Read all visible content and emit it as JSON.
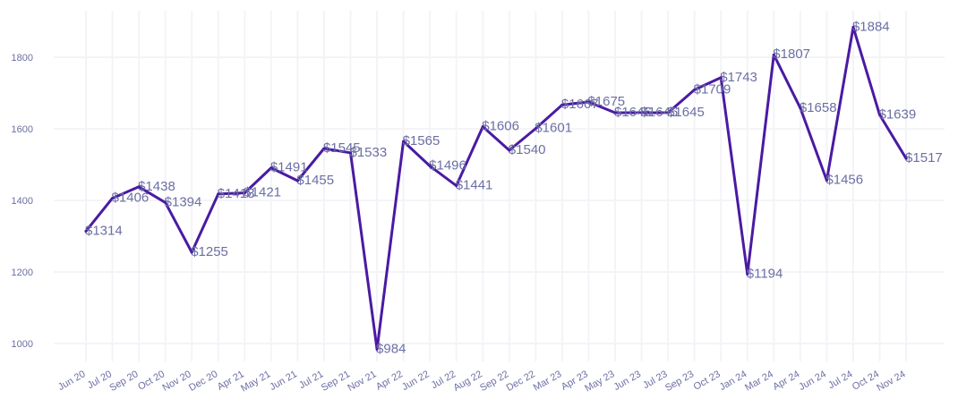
{
  "chart_data": {
    "type": "line",
    "title": "",
    "xlabel": "",
    "ylabel": "",
    "ylim": [
      950,
      1930
    ],
    "yticks": [
      1000,
      1200,
      1400,
      1600,
      1800
    ],
    "ytick_labels": [
      "1000",
      "1200",
      "1400",
      "1600",
      "1800"
    ],
    "grid": true,
    "legend": "none",
    "line_color": "#4a1aa3",
    "label_color": "#6b6fa3",
    "grid_color": "#f4f4f8",
    "categories": [
      "Jun 20",
      "Jul 20",
      "Sep 20",
      "Oct 20",
      "Nov 20",
      "Dec 20",
      "Apr 21",
      "May 21",
      "Jun 21",
      "Jul 21",
      "Sep 21",
      "Nov 21",
      "Apr 22",
      "Jun 22",
      "Jul 22",
      "Aug 22",
      "Sep 22",
      "Dec 22",
      "Mar 23",
      "Apr 23",
      "May 23",
      "Jun 23",
      "Jul 23",
      "Sep 23",
      "Oct 23",
      "Jan 24",
      "Mar 24",
      "Apr 24",
      "Jun 24",
      "Jul 24",
      "Oct 24",
      "Nov 24"
    ],
    "values": [
      1314,
      1406,
      1438,
      1394,
      1255,
      1418,
      1421,
      1491,
      1455,
      1545,
      1533,
      984,
      1565,
      1496,
      1441,
      1606,
      1540,
      1601,
      1667,
      1675,
      1645,
      1645,
      1645,
      1709,
      1743,
      1194,
      1807,
      1658,
      1456,
      1884,
      1639,
      1517
    ],
    "data_labels": [
      "$1314",
      "$1406",
      "$1438",
      "$1394",
      "$1255",
      "$1418",
      "$1421",
      "$1491",
      "$1455",
      "$1545",
      "$1533",
      "$984",
      "$1565",
      "$1496",
      "$1441",
      "$1606",
      "$1540",
      "$1601",
      "$1667",
      "$1675",
      "$1645",
      "$1645",
      "$1645",
      "$1709",
      "$1743",
      "$1194",
      "$1807",
      "$1658",
      "$1456",
      "$1884",
      "$1639",
      "$1517"
    ]
  }
}
